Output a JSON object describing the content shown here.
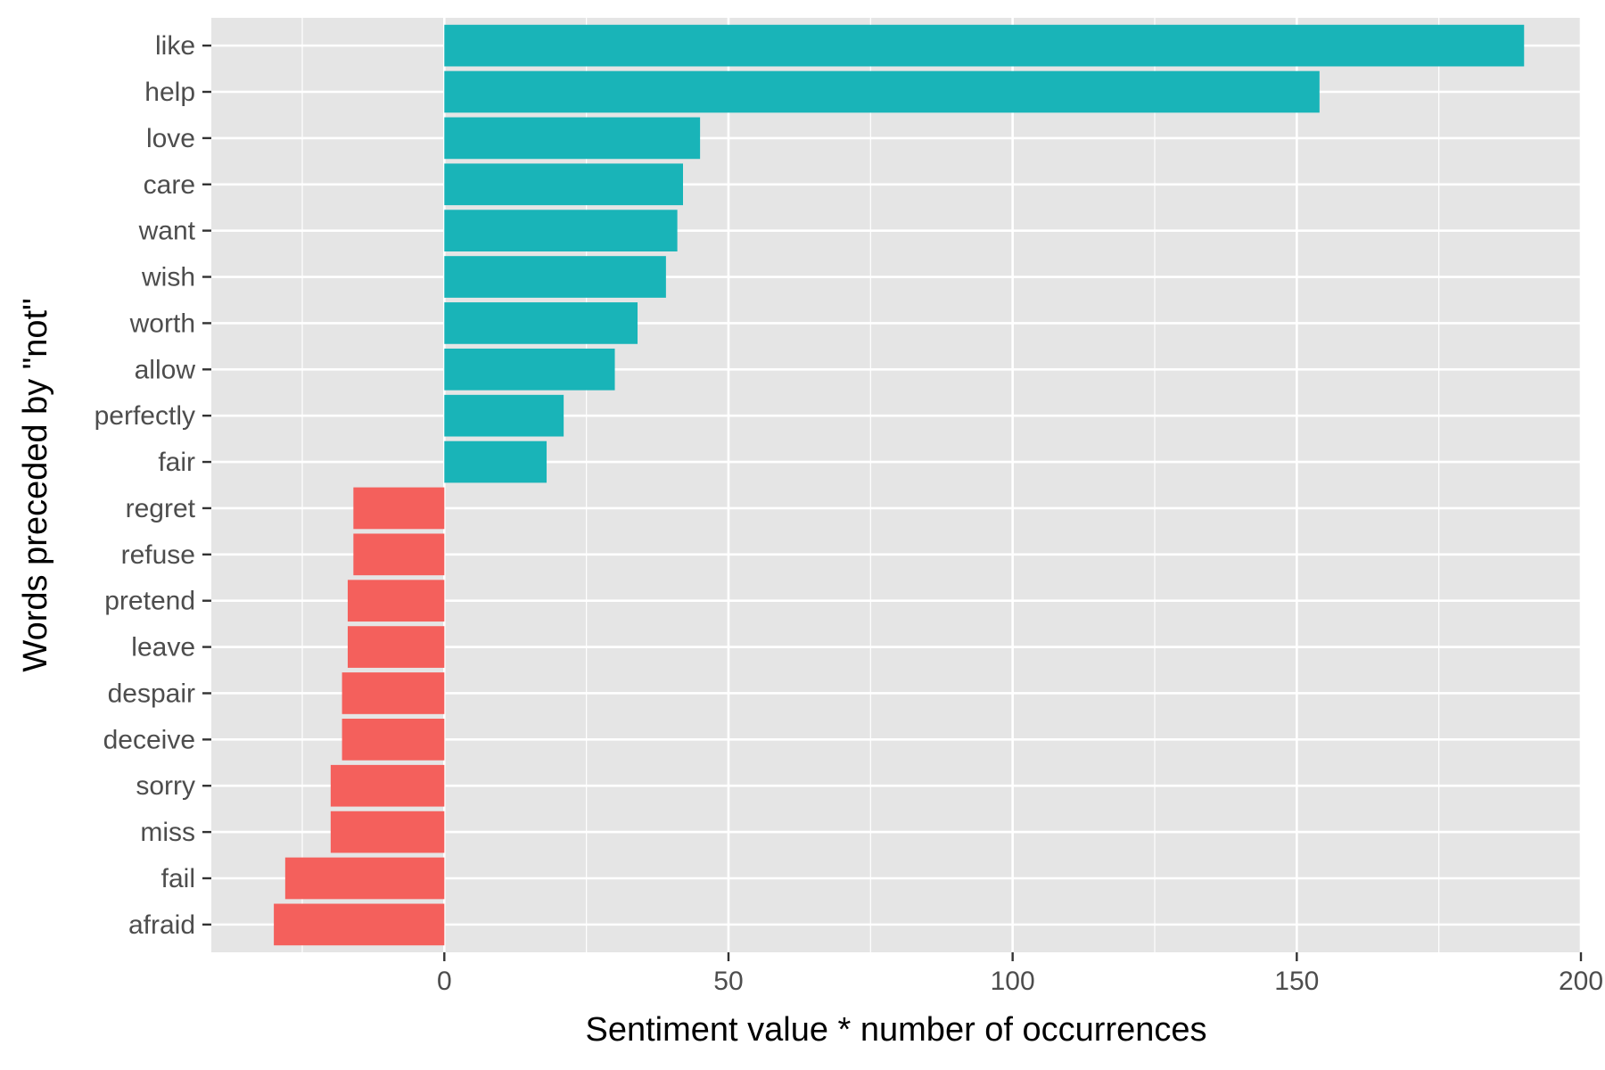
{
  "chart_data": {
    "type": "bar",
    "orientation": "horizontal",
    "title": "",
    "xlabel": "Sentiment value * number of occurrences",
    "ylabel": "Words preceded by \"not\"",
    "xlim": [
      -41,
      200
    ],
    "xticks": [
      0,
      50,
      100,
      150,
      200
    ],
    "grid": true,
    "legend": "none",
    "colors": {
      "positive": "#19b4b8",
      "negative": "#f4605c",
      "panel": "#e5e5e5",
      "grid": "#ffffff"
    },
    "categories": [
      "like",
      "help",
      "love",
      "care",
      "want",
      "wish",
      "worth",
      "allow",
      "perfectly",
      "fair",
      "regret",
      "refuse",
      "pretend",
      "leave",
      "despair",
      "deceive",
      "sorry",
      "miss",
      "fail",
      "afraid"
    ],
    "values": [
      190,
      154,
      45,
      42,
      41,
      39,
      34,
      30,
      21,
      18,
      -16,
      -16,
      -17,
      -17,
      -18,
      -18,
      -20,
      -20,
      -28,
      -30
    ]
  }
}
